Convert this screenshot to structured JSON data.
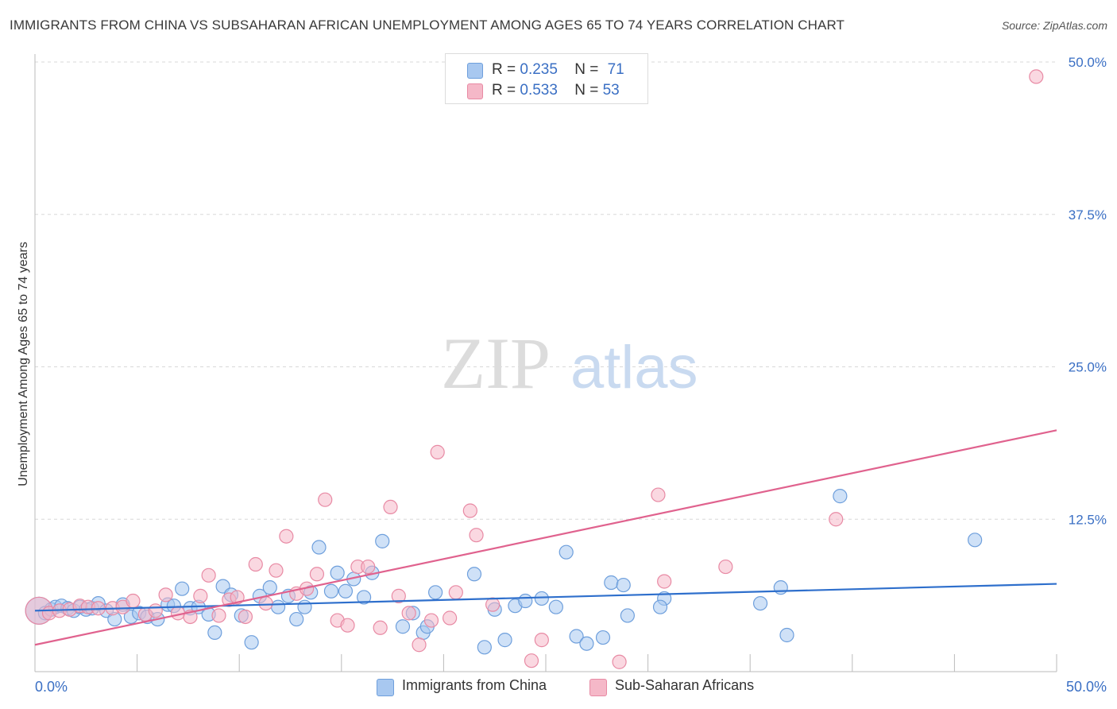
{
  "title": "IMMIGRANTS FROM CHINA VS SUBSAHARAN AFRICAN UNEMPLOYMENT AMONG AGES 65 TO 74 YEARS CORRELATION CHART",
  "source": "Source: ZipAtlas.com",
  "watermark": {
    "zip": "ZIP",
    "atlas": "atlas"
  },
  "legend_top": [
    {
      "r_label": "R =",
      "r_value": "0.235",
      "n_label": "N =",
      "n_value": "71"
    },
    {
      "r_label": "R =",
      "r_value": "0.533",
      "n_label": "N =",
      "n_value": "53"
    }
  ],
  "legend_bottom": [
    "Immigrants from China",
    "Sub-Saharan Africans"
  ],
  "colors": {
    "china_fill": "#a8c8f0",
    "china_stroke": "#6e9fdc",
    "china_line": "#2e6fcc",
    "africa_fill": "#f5b8c8",
    "africa_stroke": "#e88aa4",
    "africa_line": "#e0628e",
    "axis_text": "#3a6fc4",
    "grid": "#d8d8d8"
  },
  "chart_data": {
    "type": "scatter",
    "title": "IMMIGRANTS FROM CHINA VS SUBSAHARAN AFRICAN UNEMPLOYMENT AMONG AGES 65 TO 74 YEARS CORRELATION CHART",
    "xlabel": "",
    "ylabel": "Unemployment Among Ages 65 to 74 years",
    "xlim": [
      0,
      50
    ],
    "ylim": [
      0,
      50
    ],
    "x_tick_labels": [
      "0.0%",
      "50.0%"
    ],
    "y_ticks": [
      12.5,
      25.0,
      37.5,
      50.0
    ],
    "y_tick_labels": [
      "12.5%",
      "25.0%",
      "37.5%",
      "50.0%"
    ],
    "grid": true,
    "legend": "top-center",
    "series": [
      {
        "name": "Immigrants from China",
        "trend": [
          [
            0,
            5.0
          ],
          [
            50,
            7.2
          ]
        ],
        "points": [
          [
            0.2,
            5.0
          ],
          [
            0.5,
            4.8
          ],
          [
            0.8,
            5.1
          ],
          [
            1.0,
            5.3
          ],
          [
            1.3,
            5.4
          ],
          [
            1.6,
            5.2
          ],
          [
            1.9,
            5.0
          ],
          [
            2.2,
            5.3
          ],
          [
            2.5,
            5.1
          ],
          [
            2.8,
            5.2
          ],
          [
            3.1,
            5.6
          ],
          [
            3.5,
            5.0
          ],
          [
            3.9,
            4.3
          ],
          [
            4.3,
            5.5
          ],
          [
            4.7,
            4.5
          ],
          [
            5.1,
            4.8
          ],
          [
            5.5,
            4.5
          ],
          [
            6.0,
            4.3
          ],
          [
            6.5,
            5.5
          ],
          [
            6.8,
            5.4
          ],
          [
            7.2,
            6.8
          ],
          [
            7.6,
            5.2
          ],
          [
            8.0,
            5.3
          ],
          [
            8.5,
            4.7
          ],
          [
            8.8,
            3.2
          ],
          [
            9.2,
            7.0
          ],
          [
            9.6,
            6.3
          ],
          [
            10.1,
            4.6
          ],
          [
            10.6,
            2.4
          ],
          [
            11.0,
            6.2
          ],
          [
            11.5,
            6.9
          ],
          [
            11.9,
            5.3
          ],
          [
            12.4,
            6.2
          ],
          [
            12.8,
            4.3
          ],
          [
            13.2,
            5.3
          ],
          [
            13.5,
            6.5
          ],
          [
            13.9,
            10.2
          ],
          [
            14.5,
            6.6
          ],
          [
            14.8,
            8.1
          ],
          [
            15.2,
            6.6
          ],
          [
            15.6,
            7.6
          ],
          [
            16.1,
            6.1
          ],
          [
            16.5,
            8.1
          ],
          [
            17.0,
            10.7
          ],
          [
            18.0,
            3.7
          ],
          [
            18.5,
            4.8
          ],
          [
            19.0,
            3.2
          ],
          [
            19.2,
            3.7
          ],
          [
            19.6,
            6.5
          ],
          [
            21.5,
            8.0
          ],
          [
            22.0,
            2.0
          ],
          [
            22.5,
            5.1
          ],
          [
            23.0,
            2.6
          ],
          [
            23.5,
            5.4
          ],
          [
            24.0,
            5.8
          ],
          [
            24.8,
            6.0
          ],
          [
            25.5,
            5.3
          ],
          [
            26.0,
            9.8
          ],
          [
            26.5,
            2.9
          ],
          [
            27.0,
            2.3
          ],
          [
            27.8,
            2.8
          ],
          [
            28.2,
            7.3
          ],
          [
            28.8,
            7.1
          ],
          [
            29.0,
            4.6
          ],
          [
            30.8,
            6.0
          ],
          [
            30.6,
            5.3
          ],
          [
            35.5,
            5.6
          ],
          [
            36.5,
            6.9
          ],
          [
            36.8,
            3.0
          ],
          [
            39.4,
            14.4
          ],
          [
            46.0,
            10.8
          ]
        ]
      },
      {
        "name": "Sub-Saharan Africans",
        "trend": [
          [
            0,
            2.2
          ],
          [
            50,
            19.8
          ]
        ],
        "points": [
          [
            0.2,
            5.0
          ],
          [
            0.7,
            4.8
          ],
          [
            1.2,
            5.0
          ],
          [
            1.7,
            5.1
          ],
          [
            2.2,
            5.4
          ],
          [
            2.6,
            5.3
          ],
          [
            3.1,
            5.2
          ],
          [
            3.8,
            5.2
          ],
          [
            4.3,
            5.3
          ],
          [
            4.8,
            5.8
          ],
          [
            5.4,
            4.7
          ],
          [
            5.9,
            5.0
          ],
          [
            6.4,
            6.3
          ],
          [
            7.0,
            4.8
          ],
          [
            7.6,
            4.5
          ],
          [
            8.1,
            6.2
          ],
          [
            8.5,
            7.9
          ],
          [
            9.0,
            4.6
          ],
          [
            9.5,
            5.9
          ],
          [
            9.9,
            6.1
          ],
          [
            10.3,
            4.5
          ],
          [
            10.8,
            8.8
          ],
          [
            11.3,
            5.6
          ],
          [
            11.8,
            8.3
          ],
          [
            12.3,
            11.1
          ],
          [
            12.8,
            6.4
          ],
          [
            13.3,
            6.8
          ],
          [
            13.8,
            8.0
          ],
          [
            14.2,
            14.1
          ],
          [
            14.8,
            4.2
          ],
          [
            15.3,
            3.8
          ],
          [
            15.8,
            8.6
          ],
          [
            16.3,
            8.6
          ],
          [
            16.9,
            3.6
          ],
          [
            17.4,
            13.5
          ],
          [
            17.8,
            6.2
          ],
          [
            18.3,
            4.8
          ],
          [
            18.8,
            2.2
          ],
          [
            19.4,
            4.2
          ],
          [
            19.7,
            18.0
          ],
          [
            20.3,
            4.4
          ],
          [
            20.6,
            6.5
          ],
          [
            21.3,
            13.2
          ],
          [
            21.6,
            11.2
          ],
          [
            22.4,
            5.5
          ],
          [
            24.3,
            0.9
          ],
          [
            24.8,
            2.6
          ],
          [
            28.6,
            0.8
          ],
          [
            30.5,
            14.5
          ],
          [
            30.8,
            7.4
          ],
          [
            33.8,
            8.6
          ],
          [
            39.2,
            12.5
          ],
          [
            49.0,
            48.8
          ]
        ]
      }
    ]
  }
}
